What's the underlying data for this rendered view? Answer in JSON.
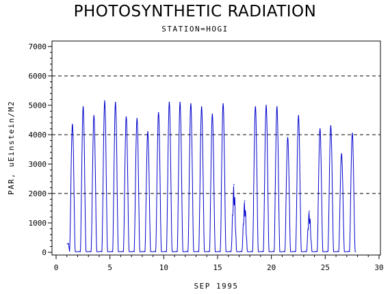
{
  "title": "PHOTOSYNTHETIC RADIATION",
  "subtitle": "STATION=HOGI",
  "chart_data": {
    "type": "line",
    "title": "PHOTOSYNTHETIC RADIATION",
    "subtitle": "STATION=HOGI",
    "xlabel": "SEP 1995",
    "ylabel": "PAR, uEinstein/M2",
    "xlim": [
      0,
      30
    ],
    "ylim": [
      0,
      7000
    ],
    "xticks": [
      0,
      5,
      10,
      15,
      20,
      25,
      30
    ],
    "yticks": [
      0,
      1000,
      2000,
      3000,
      4000,
      5000,
      6000,
      7000
    ],
    "reference_lines_y": [
      2000,
      4000,
      6000
    ],
    "grid": false,
    "line_color": "#0000cc",
    "daily_peaks": [
      {
        "day": 1,
        "peak": 4350
      },
      {
        "day": 2,
        "peak": 4950
      },
      {
        "day": 3,
        "peak": 4650
      },
      {
        "day": 4,
        "peak": 5150
      },
      {
        "day": 5,
        "peak": 5100
      },
      {
        "day": 6,
        "peak": 4600
      },
      {
        "day": 7,
        "peak": 4550
      },
      {
        "day": 8,
        "peak": 4100
      },
      {
        "day": 9,
        "peak": 4750
      },
      {
        "day": 10,
        "peak": 5100
      },
      {
        "day": 11,
        "peak": 5100
      },
      {
        "day": 12,
        "peak": 5050
      },
      {
        "day": 13,
        "peak": 4950
      },
      {
        "day": 14,
        "peak": 4700
      },
      {
        "day": 15,
        "peak": 5050
      },
      {
        "day": 16,
        "peak": 2300
      },
      {
        "day": 17,
        "peak": 1750
      },
      {
        "day": 18,
        "peak": 4950
      },
      {
        "day": 19,
        "peak": 5000
      },
      {
        "day": 20,
        "peak": 4950
      },
      {
        "day": 21,
        "peak": 3900
      },
      {
        "day": 22,
        "peak": 4650
      },
      {
        "day": 23,
        "peak": 1400
      },
      {
        "day": 24,
        "peak": 4200
      },
      {
        "day": 25,
        "peak": 4300
      },
      {
        "day": 26,
        "peak": 3350
      },
      {
        "day": 27,
        "peak": 4050
      }
    ]
  }
}
